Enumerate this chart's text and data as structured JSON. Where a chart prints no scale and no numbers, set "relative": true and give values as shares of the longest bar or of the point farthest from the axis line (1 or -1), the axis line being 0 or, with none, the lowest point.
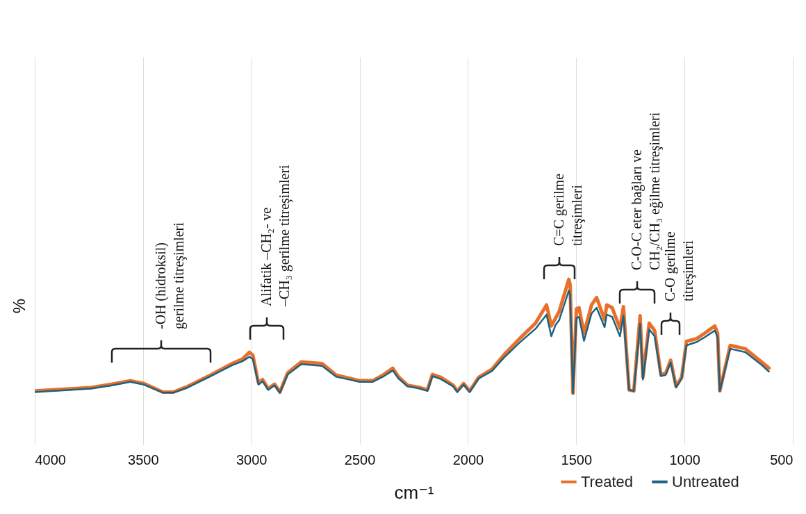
{
  "chart_data": {
    "type": "line",
    "relative": true,
    "xlabel": "cm⁻¹",
    "ylabel": "%",
    "xlim": [
      4000,
      500
    ],
    "xticks": [
      4000,
      3500,
      3000,
      2500,
      2000,
      1500,
      1000,
      500
    ],
    "grid": "x",
    "legend": "bottom right",
    "x": [
      4000,
      3741,
      3642,
      3559,
      3495,
      3408,
      3360,
      3300,
      3188,
      3089,
      3041,
      3009,
      2993,
      2967,
      2948,
      2922,
      2893,
      2868,
      2832,
      2769,
      2673,
      2609,
      2500,
      2439,
      2388,
      2347,
      2321,
      2279,
      2232,
      2187,
      2164,
      2126,
      2068,
      2049,
      2020,
      1992,
      1950,
      1889,
      1832,
      1761,
      1688,
      1637,
      1615,
      1595,
      1579,
      1534,
      1528,
      1515,
      1499,
      1487,
      1464,
      1429,
      1406,
      1369,
      1359,
      1334,
      1298,
      1282,
      1256,
      1234,
      1205,
      1192,
      1163,
      1138,
      1109,
      1087,
      1064,
      1039,
      1013,
      991,
      943,
      908,
      860,
      847,
      837,
      789,
      719,
      645,
      610
    ],
    "series": [
      {
        "name": "Treated",
        "color": "#e8702a",
        "values": [
          0.02,
          0.05,
          0.08,
          0.11,
          0.085,
          0.01,
          0.01,
          0.055,
          0.16,
          0.26,
          0.3,
          0.36,
          0.335,
          0.09,
          0.12,
          0.04,
          0.08,
          0.01,
          0.18,
          0.275,
          0.26,
          0.16,
          0.11,
          0.11,
          0.165,
          0.22,
          0.145,
          0.07,
          0.055,
          0.03,
          0.165,
          0.14,
          0.07,
          0.02,
          0.085,
          0.02,
          0.14,
          0.21,
          0.34,
          0.48,
          0.615,
          0.775,
          0.59,
          0.66,
          0.715,
          1.0,
          0.95,
          0,
          0.74,
          0.75,
          0.525,
          0.775,
          0.84,
          0.645,
          0.775,
          0.75,
          0.57,
          0.76,
          0.03,
          0.02,
          0.68,
          0.14,
          0.615,
          0.55,
          0.165,
          0.175,
          0.29,
          0.06,
          0.14,
          0.455,
          0.48,
          0.525,
          0.59,
          0.525,
          0.02,
          0.42,
          0.39,
          0.275,
          0.22
        ]
      },
      {
        "name": "Untreated",
        "color": "#1b6283",
        "values": [
          0.01,
          0.04,
          0.07,
          0.1,
          0.075,
          0.005,
          0.005,
          0.045,
          0.15,
          0.245,
          0.28,
          0.32,
          0.3,
          0.075,
          0.105,
          0.03,
          0.07,
          0.005,
          0.165,
          0.255,
          0.24,
          0.145,
          0.1,
          0.1,
          0.15,
          0.2,
          0.13,
          0.06,
          0.045,
          0.02,
          0.15,
          0.125,
          0.06,
          0.01,
          0.075,
          0.01,
          0.13,
          0.195,
          0.315,
          0.445,
          0.565,
          0.69,
          0.5,
          0.6,
          0.64,
          0.9,
          0.86,
          0,
          0.66,
          0.67,
          0.46,
          0.7,
          0.75,
          0.58,
          0.69,
          0.67,
          0.5,
          0.68,
          0.03,
          0.02,
          0.61,
          0.12,
          0.56,
          0.5,
          0.15,
          0.16,
          0.27,
          0.05,
          0.13,
          0.42,
          0.45,
          0.49,
          0.55,
          0.49,
          0.02,
          0.39,
          0.36,
          0.25,
          0.19
        ]
      }
    ],
    "annotations": [
      "-OH (hidroksil)\ngerilme titreşimleri",
      "Alifatik –CH₂- ve\n–CH₃ gerilme titreşimleri",
      "C=C gerilme\ntitreşimleri",
      "C-O-C eter bağları ve\nCH₂/CH₃ eğilme titreşimleri",
      "C-O gerilme\ntitreşimleri"
    ]
  }
}
